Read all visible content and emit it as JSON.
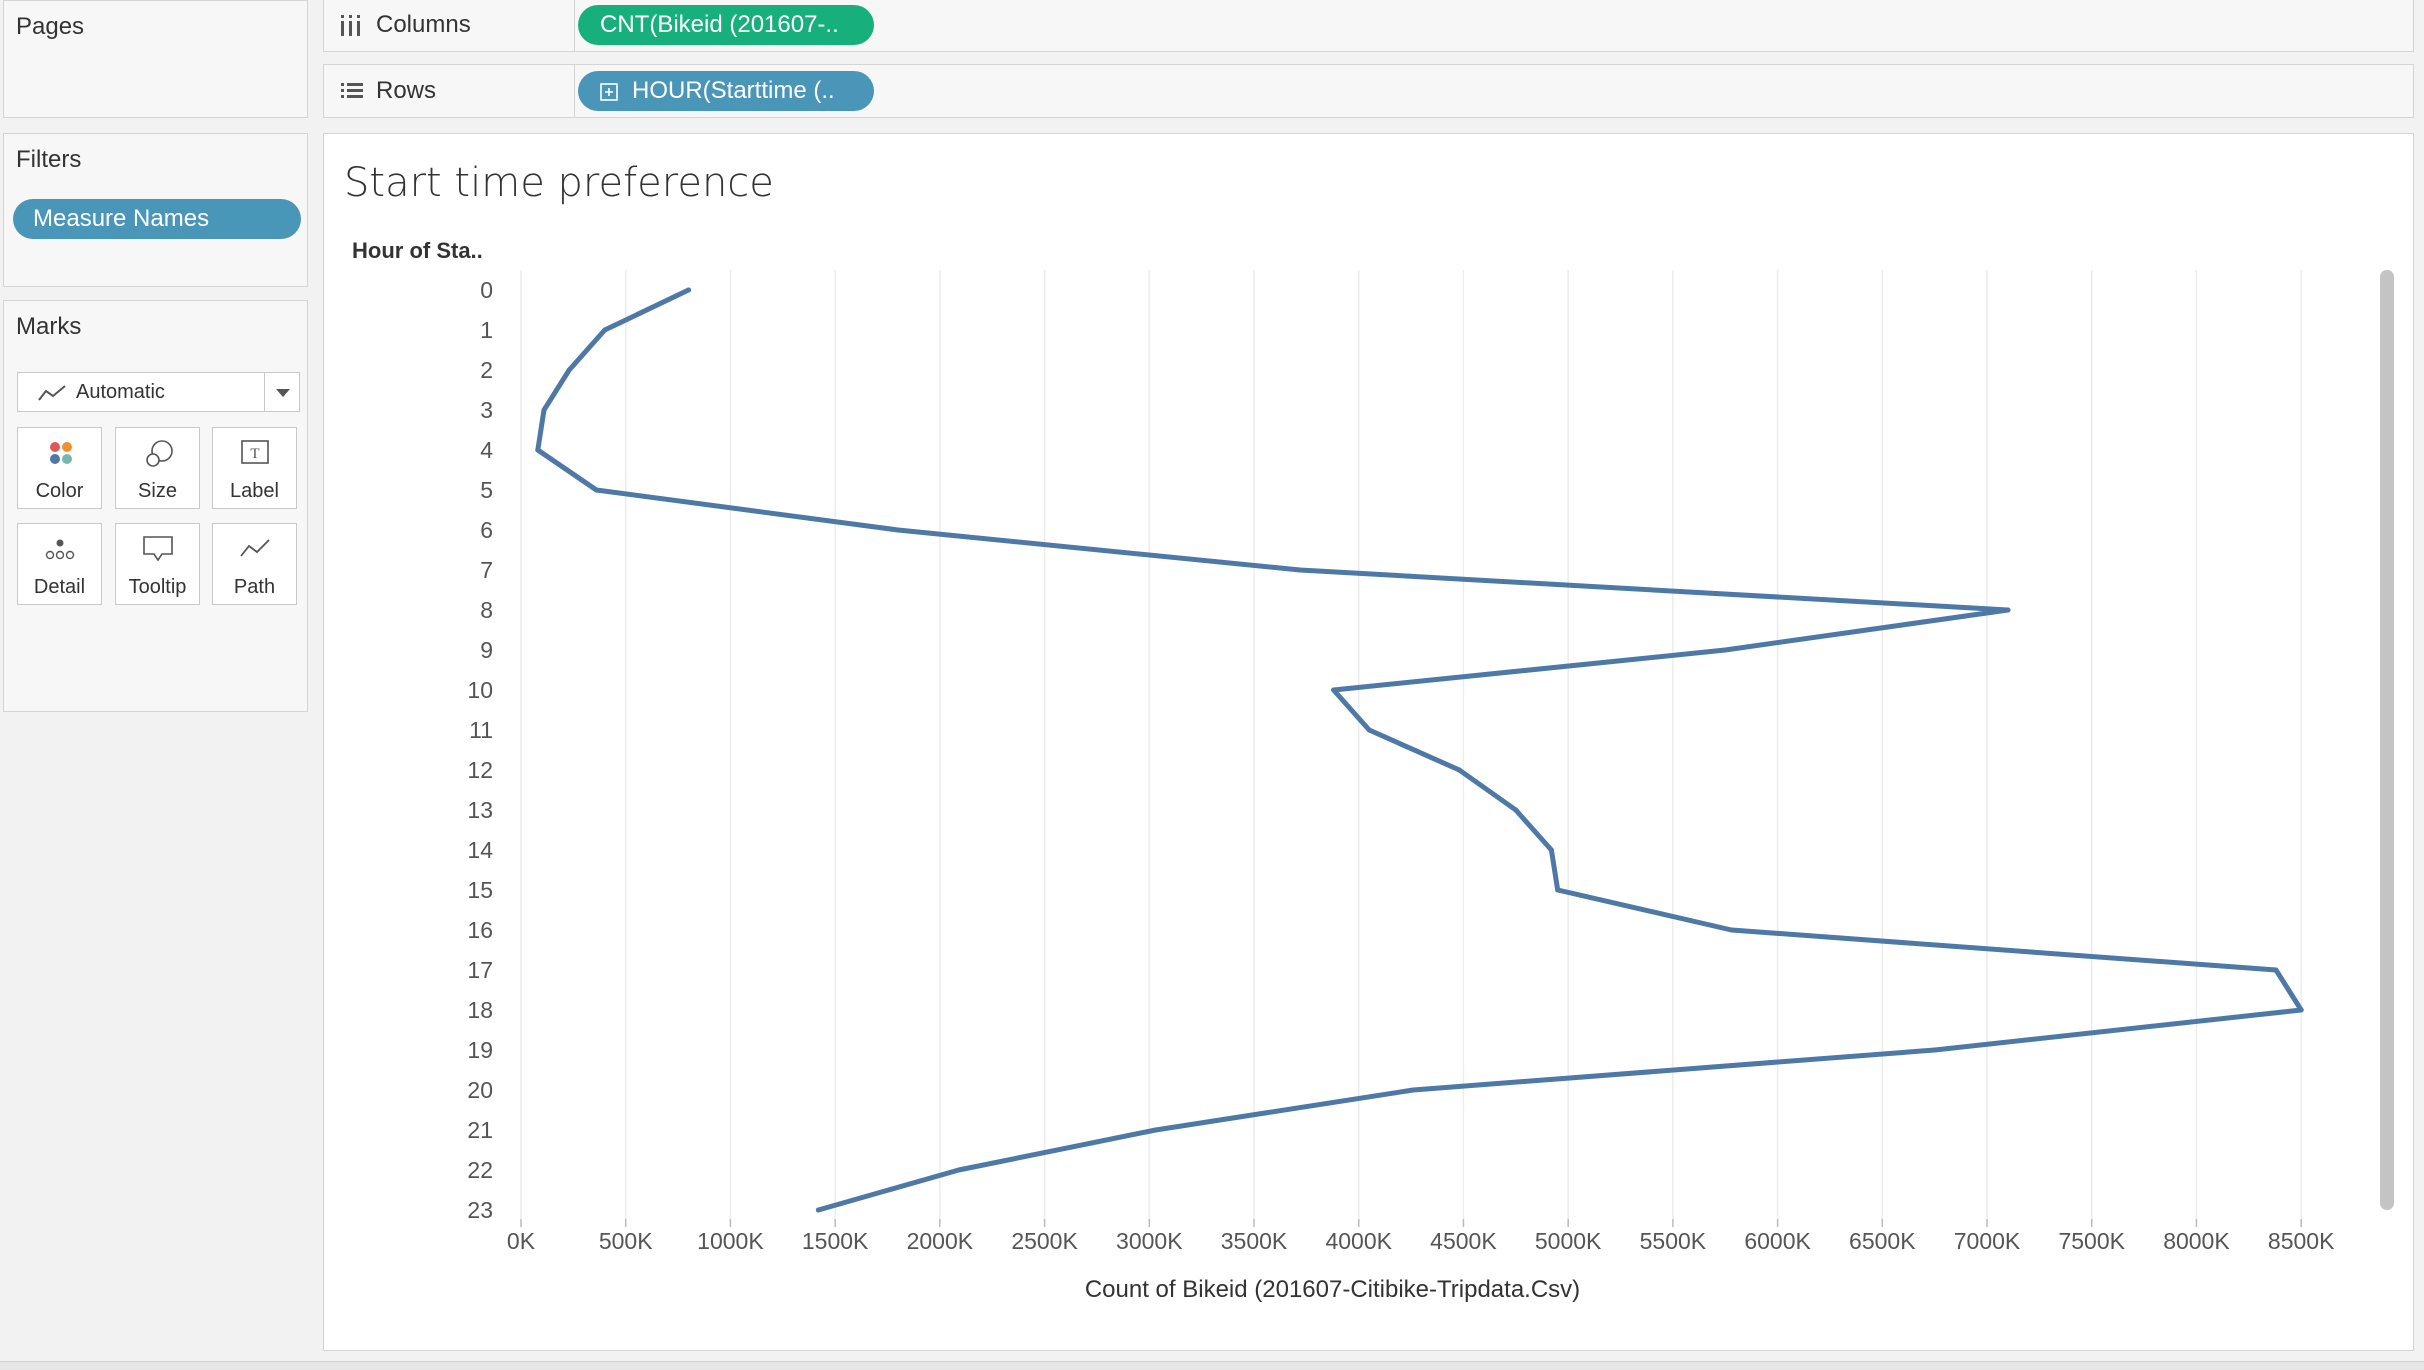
{
  "sidebar": {
    "pages_title": "Pages",
    "filters_title": "Filters",
    "filters": [
      {
        "label": "Measure Names"
      }
    ],
    "marks_title": "Marks",
    "mark_type": "Automatic",
    "mark_buttons": [
      {
        "label": "Color",
        "icon": "color-dots-icon"
      },
      {
        "label": "Size",
        "icon": "size-circles-icon"
      },
      {
        "label": "Label",
        "icon": "text-box-icon"
      },
      {
        "label": "Detail",
        "icon": "detail-dots-icon"
      },
      {
        "label": "Tooltip",
        "icon": "speech-bubble-icon"
      },
      {
        "label": "Path",
        "icon": "path-line-icon"
      }
    ]
  },
  "shelves": {
    "columns_label": "Columns",
    "columns_pill": "CNT(Bikeid (201607-..",
    "rows_label": "Rows",
    "rows_pill": "HOUR(Starttime (.."
  },
  "colors": {
    "line": "#4e79a7",
    "pill_blue": "#4a96b9",
    "pill_green": "#17b07d"
  },
  "chart_data": {
    "type": "line",
    "orientation": "horizontal",
    "title": "Start time preference",
    "ylabel": "Hour of Sta..",
    "xlabel": "Count of Bikeid (201607-Citibike-Tripdata.Csv)",
    "categories": [
      "0",
      "1",
      "2",
      "3",
      "4",
      "5",
      "6",
      "7",
      "8",
      "9",
      "10",
      "11",
      "12",
      "13",
      "14",
      "15",
      "16",
      "17",
      "18",
      "19",
      "20",
      "21",
      "22",
      "23"
    ],
    "series": [
      {
        "values": [
          800000,
          400000,
          230000,
          110000,
          80000,
          360000,
          1800000,
          3720000,
          7100000,
          5750000,
          3880000,
          4050000,
          4480000,
          4750000,
          4920000,
          4950000,
          5780000,
          8380000,
          8500000,
          6750000,
          4260000,
          3030000,
          2090000,
          1420000
        ]
      }
    ],
    "xlim": [
      0,
      8800000
    ],
    "xticks": [
      "0K",
      "500K",
      "1000K",
      "1500K",
      "2000K",
      "2500K",
      "3000K",
      "3500K",
      "4000K",
      "4500K",
      "5000K",
      "5500K",
      "6000K",
      "6500K",
      "7000K",
      "7500K",
      "8000K",
      "8500K"
    ],
    "grid": "vertical"
  }
}
